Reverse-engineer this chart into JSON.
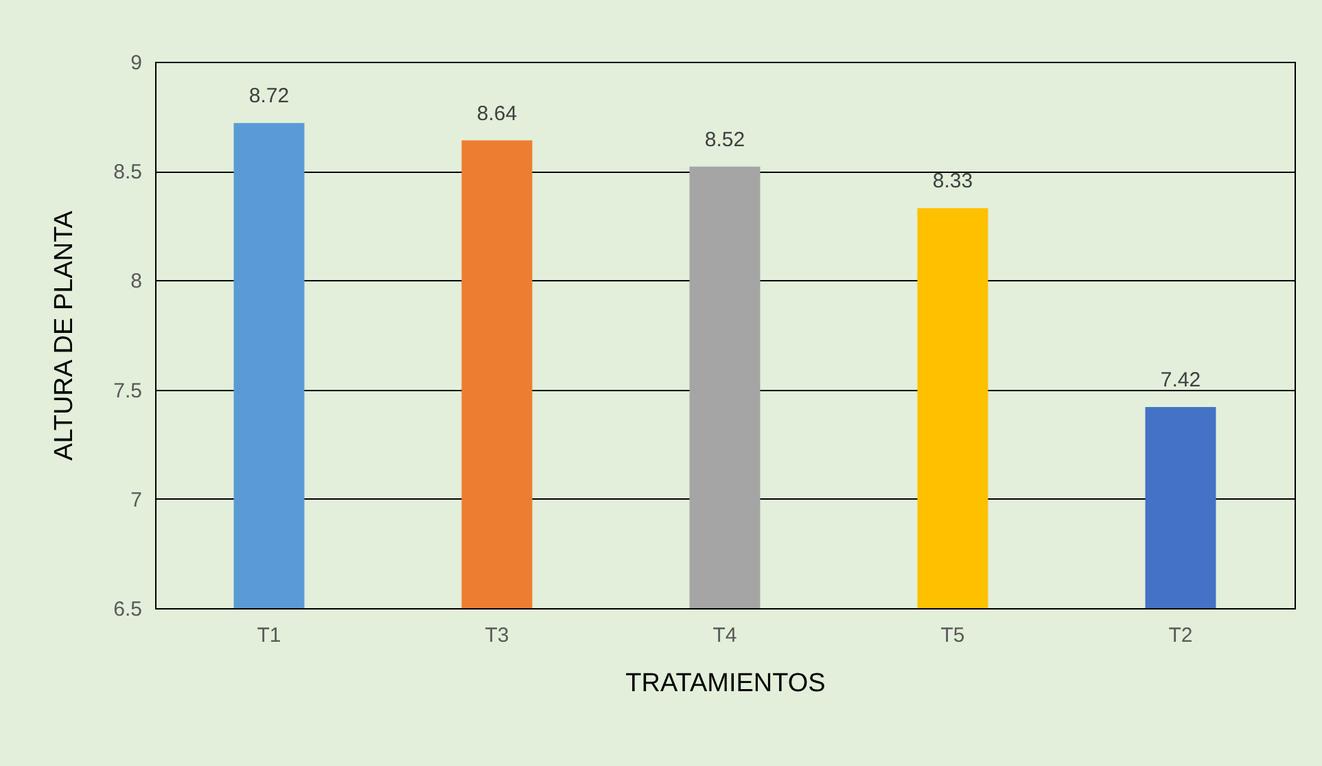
{
  "chart_data": {
    "type": "bar",
    "xlabel": "TRATAMIENTOS",
    "ylabel": "ALTURA DE PLANTA",
    "categories": [
      "T1",
      "T3",
      "T4",
      "T5",
      "T2"
    ],
    "values": [
      8.72,
      8.64,
      8.52,
      8.33,
      7.42
    ],
    "colors": [
      "#5b9bd5",
      "#ed7d31",
      "#a5a5a5",
      "#ffc000",
      "#4472c4"
    ],
    "ylim": [
      6.5,
      9
    ],
    "yticks": [
      6.5,
      7,
      7.5,
      8,
      8.5,
      9
    ],
    "grid": "y",
    "data_labels": true
  }
}
